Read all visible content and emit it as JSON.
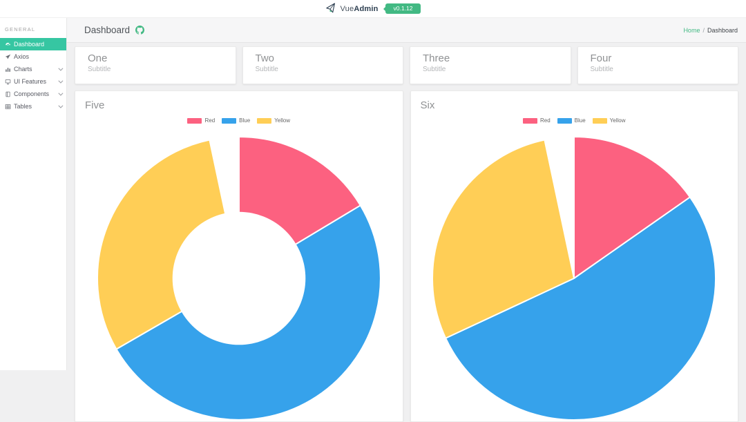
{
  "header": {
    "brand_prefix": "Vue",
    "brand_suffix": "Admin",
    "version_badge": "v0.1.12"
  },
  "sidebar": {
    "section_label": "GENERAL",
    "items": [
      {
        "label": "Dashboard",
        "icon": "gauge-icon",
        "active": true,
        "expandable": false
      },
      {
        "label": "Axios",
        "icon": "paper-plane-icon",
        "active": false,
        "expandable": false
      },
      {
        "label": "Charts",
        "icon": "bar-chart-icon",
        "active": false,
        "expandable": true
      },
      {
        "label": "UI Features",
        "icon": "monitor-icon",
        "active": false,
        "expandable": true
      },
      {
        "label": "Components",
        "icon": "book-icon",
        "active": false,
        "expandable": true
      },
      {
        "label": "Tables",
        "icon": "table-icon",
        "active": false,
        "expandable": true
      }
    ]
  },
  "toolbar": {
    "title": "Dashboard",
    "breadcrumb": {
      "home": "Home",
      "separator": "/",
      "current": "Dashboard"
    }
  },
  "stat_cards": [
    {
      "title": "One",
      "subtitle": "Subtitle"
    },
    {
      "title": "Two",
      "subtitle": "Subtitle"
    },
    {
      "title": "Three",
      "subtitle": "Subtitle"
    },
    {
      "title": "Four",
      "subtitle": "Subtitle"
    }
  ],
  "chart_data": [
    {
      "type": "doughnut",
      "title": "Five",
      "legend": [
        "Red",
        "Blue",
        "Yellow"
      ],
      "legend_position": "top",
      "colors": [
        "#fc6180",
        "#36a2eb",
        "#ffce56"
      ],
      "hole_ratio": 0.47,
      "slices": [
        {
          "label": "Red",
          "start_deg": 0,
          "end_deg": 59,
          "pct": 16.4
        },
        {
          "label": "Blue",
          "start_deg": 59,
          "end_deg": 240,
          "pct": 50.3
        },
        {
          "label": "Yellow",
          "start_deg": 240,
          "end_deg": 348,
          "pct": 30.0
        }
      ],
      "unfilled_gap": {
        "start_deg": 348,
        "end_deg": 360,
        "pct": 3.3
      }
    },
    {
      "type": "pie",
      "title": "Six",
      "legend": [
        "Red",
        "Blue",
        "Yellow"
      ],
      "legend_position": "top",
      "colors": [
        "#fc6180",
        "#36a2eb",
        "#ffce56"
      ],
      "hole_ratio": 0,
      "slices": [
        {
          "label": "Red",
          "start_deg": 0,
          "end_deg": 55,
          "pct": 15.3
        },
        {
          "label": "Blue",
          "start_deg": 55,
          "end_deg": 245,
          "pct": 52.8
        },
        {
          "label": "Yellow",
          "start_deg": 245,
          "end_deg": 348,
          "pct": 28.6
        }
      ],
      "unfilled_gap": {
        "start_deg": 348,
        "end_deg": 360,
        "pct": 3.3
      }
    }
  ],
  "colors": {
    "accent_teal": "#36c6a2",
    "brand_green": "#42b983",
    "chart_red": "#fc6180",
    "chart_blue": "#36a2eb",
    "chart_yellow": "#ffce56"
  }
}
